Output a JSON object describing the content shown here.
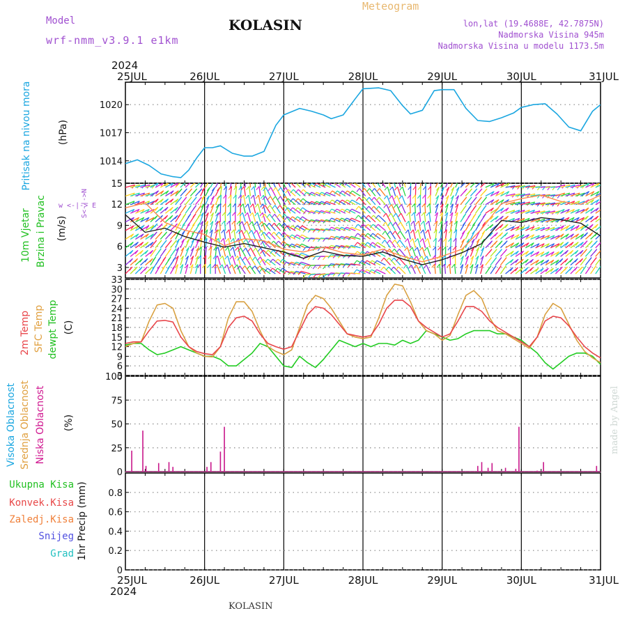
{
  "header": {
    "model_label": "Model",
    "model_name": "wrf-nmm_v3.9.1 e1km",
    "station": "KOLASIN",
    "meteogram": "Meteogram",
    "lonlat": "lon,lat (19.4688E, 42.7875N)",
    "elevation": "Nadmorska Visina 945m",
    "elevation_model": "Nadmorska Visina u modelu 1173.5m",
    "year": "2024",
    "credit": "made by Angel",
    "footer_station": "KOLASIN"
  },
  "colors": {
    "pressure": "#1aa6e0",
    "temp2m": "#e8454a",
    "sfc": "#d8a040",
    "dewpt": "#22cc22",
    "cloud_low": "#c8168a",
    "label_green": "#22c022",
    "label_red": "#e84848",
    "label_orange": "#f0803a",
    "label_blue": "#5050e0",
    "label_teal": "#22c0c0",
    "label_purple": "#a050d0",
    "label_cyan": "#1aa6e0",
    "label_magenta": "#d01890",
    "label_gold": "#e0a040"
  },
  "chart_data": [
    {
      "panel": "pressure",
      "type": "line",
      "xlabels": [
        "25JUL",
        "26JUL",
        "27JUL",
        "28JUL",
        "29JUL",
        "30JUL",
        "31JUL"
      ],
      "ylabel_title": "Pritisak na nivou mora",
      "ylabel_unit": "(hPa)",
      "yticks": [
        "1014",
        "1017",
        "1020"
      ],
      "ylim": [
        1011.6,
        1022.4
      ],
      "x_days": [
        0,
        0.15,
        0.3,
        0.45,
        0.6,
        0.7,
        0.8,
        0.9,
        1.0,
        1.1,
        1.2,
        1.35,
        1.5,
        1.6,
        1.75,
        1.9,
        2.0,
        2.2,
        2.35,
        2.5,
        2.6,
        2.75,
        2.9,
        3.0,
        3.2,
        3.35,
        3.5,
        3.6,
        3.75,
        3.9,
        4.0,
        4.15,
        4.3,
        4.45,
        4.6,
        4.75,
        4.9,
        5.0,
        5.15,
        5.3,
        5.45,
        5.6,
        5.75,
        5.9,
        6.0
      ],
      "values": [
        1013.7,
        1014.1,
        1013.5,
        1012.6,
        1012.3,
        1012.2,
        1013.0,
        1014.3,
        1015.4,
        1015.4,
        1015.6,
        1014.8,
        1014.5,
        1014.5,
        1015.0,
        1017.8,
        1018.9,
        1019.6,
        1019.3,
        1018.9,
        1018.5,
        1018.9,
        1020.6,
        1021.7,
        1021.8,
        1021.5,
        1019.9,
        1019.0,
        1019.4,
        1021.5,
        1021.6,
        1021.6,
        1019.6,
        1018.3,
        1018.2,
        1018.6,
        1019.1,
        1019.7,
        1020.0,
        1020.1,
        1019.0,
        1017.6,
        1017.2,
        1019.3,
        1020.0
      ]
    },
    {
      "panel": "wind",
      "type": "line",
      "ylabel_title1": "10m Vjetar",
      "ylabel_title2": "Brzina i Pravac",
      "ylabel_unit": "(m/s)",
      "compass": "w <-|-> E",
      "compass_v": "S<-|->N",
      "yticks": [
        "3",
        "6",
        "9",
        "12",
        "15"
      ],
      "ylim": [
        1.5,
        15
      ],
      "x_days": [
        0,
        0.25,
        0.5,
        0.75,
        1.0,
        1.25,
        1.5,
        1.75,
        2.0,
        2.25,
        2.5,
        2.75,
        3.0,
        3.25,
        3.5,
        3.75,
        4.0,
        4.25,
        4.5,
        4.75,
        5.0,
        5.25,
        5.5,
        5.75,
        6.0
      ],
      "speed": [
        10.5,
        8.0,
        8.6,
        7.4,
        6.6,
        5.9,
        6.4,
        5.8,
        5.2,
        4.3,
        5.3,
        4.7,
        4.6,
        5.2,
        4.2,
        3.4,
        4.1,
        5.1,
        6.4,
        9.7,
        9.4,
        10.1,
        9.8,
        9.3,
        7.5
      ],
      "gust": [
        11.5,
        12.2,
        9.4,
        8.3,
        7.7,
        6.1,
        7.1,
        6.8,
        5.6,
        5.2,
        5.9,
        5.1,
        4.8,
        5.6,
        4.6,
        3.8,
        4.6,
        5.6,
        8.5,
        12.1,
        12.8,
        13.3,
        12.4,
        12.0,
        13.3
      ]
    },
    {
      "panel": "temperature",
      "type": "line",
      "ylabel_2m": "2m Temp",
      "ylabel_sfc": "SFC Temp",
      "ylabel_dew": "dewpt Temp",
      "ylabel_unit": "(C)",
      "yticks": [
        "3",
        "6",
        "9",
        "12",
        "15",
        "18",
        "21",
        "24",
        "27",
        "30",
        "33"
      ],
      "ylim": [
        3,
        33
      ],
      "x_days": [
        0,
        0.1,
        0.2,
        0.3,
        0.4,
        0.5,
        0.6,
        0.7,
        0.8,
        0.9,
        1.0,
        1.1,
        1.2,
        1.3,
        1.4,
        1.5,
        1.6,
        1.7,
        1.8,
        1.9,
        2.0,
        2.1,
        2.2,
        2.3,
        2.4,
        2.5,
        2.6,
        2.7,
        2.8,
        2.9,
        3.0,
        3.1,
        3.2,
        3.3,
        3.4,
        3.5,
        3.6,
        3.7,
        3.8,
        3.9,
        4.0,
        4.1,
        4.2,
        4.3,
        4.4,
        4.5,
        4.6,
        4.7,
        4.8,
        4.9,
        5.0,
        5.1,
        5.2,
        5.3,
        5.4,
        5.5,
        5.6,
        5.7,
        5.8,
        5.9,
        6.0
      ],
      "temp2m": [
        13.0,
        13.5,
        13.5,
        17.0,
        20.0,
        20.2,
        19.7,
        15.0,
        12.0,
        10.5,
        9.8,
        9.5,
        12.0,
        18.0,
        21.0,
        21.5,
        20.0,
        16.0,
        13.0,
        12.0,
        11.2,
        12.0,
        17.0,
        22.0,
        24.5,
        24.0,
        22.0,
        19.0,
        16.0,
        15.5,
        15.0,
        15.5,
        19.0,
        24.0,
        26.5,
        26.5,
        24.5,
        20.0,
        18.0,
        16.5,
        15.0,
        16.0,
        20.0,
        24.5,
        24.5,
        23.0,
        20.0,
        18.0,
        16.5,
        15.0,
        13.5,
        12.0,
        15.0,
        20.0,
        21.5,
        21.0,
        18.5,
        15.0,
        12.0,
        10.0,
        8.5
      ],
      "sfc": [
        12.0,
        13.0,
        13.5,
        20.0,
        25.0,
        25.5,
        24.0,
        17.0,
        12.0,
        10.0,
        9.0,
        8.8,
        12.0,
        21.0,
        26.0,
        26.0,
        23.0,
        17.0,
        12.0,
        10.5,
        9.5,
        11.0,
        18.0,
        25.0,
        28.0,
        27.0,
        24.0,
        20.0,
        16.0,
        15.0,
        14.5,
        15.0,
        21.0,
        28.0,
        31.5,
        31.0,
        26.0,
        20.0,
        17.0,
        16.0,
        14.0,
        15.5,
        22.0,
        28.0,
        29.5,
        27.0,
        21.0,
        17.0,
        16.0,
        14.5,
        13.0,
        11.5,
        15.0,
        22.0,
        25.5,
        24.0,
        19.0,
        14.0,
        10.5,
        8.5,
        7.0
      ],
      "dewpt": [
        12.5,
        13.0,
        13.0,
        11.0,
        9.5,
        10.0,
        11.0,
        12.0,
        11.0,
        10.0,
        9.0,
        9.0,
        8.0,
        6.0,
        6.0,
        8.0,
        10.0,
        13.0,
        12.0,
        9.0,
        6.0,
        5.5,
        9.0,
        7.0,
        5.5,
        8.0,
        11.0,
        14.0,
        13.0,
        12.0,
        13.0,
        12.0,
        13.0,
        13.0,
        12.5,
        14.0,
        13.0,
        14.0,
        17.0,
        16.0,
        15.0,
        14.0,
        14.5,
        16.0,
        17.0,
        17.0,
        17.0,
        16.0,
        16.0,
        15.0,
        14.0,
        12.0,
        10.0,
        7.0,
        5.0,
        7.0,
        9.0,
        10.0,
        10.0,
        9.0,
        6.5
      ]
    },
    {
      "panel": "clouds",
      "type": "bar",
      "ylabel_high": "Visoka Oblacnost",
      "ylabel_mid": "Srednja Oblacnost",
      "ylabel_low": "Niska Oblacnost",
      "ylabel_unit": "(%)",
      "yticks": [
        "0",
        "25",
        "50",
        "75",
        "100"
      ],
      "ylim": [
        0,
        100
      ],
      "low_x_days": [
        0.08,
        0.22,
        0.26,
        0.42,
        0.55,
        0.6,
        1.03,
        1.08,
        1.2,
        1.25,
        4.45,
        4.5,
        4.58,
        4.63,
        4.8,
        4.93,
        4.97,
        5.28,
        5.2,
        5.95
      ],
      "low_values": [
        22,
        43,
        6,
        9,
        10,
        5,
        5,
        10,
        21,
        47,
        6,
        10,
        4,
        9,
        4,
        3,
        47,
        10,
        1,
        6
      ]
    },
    {
      "panel": "precip",
      "type": "bar",
      "ylabel": "1hr Precip (mm)",
      "legend": [
        "Ukupna Kisa",
        "Konvek.Kisa",
        "Zaledj.Kisa",
        "Snijeg",
        "Grad"
      ],
      "yticks": [
        "0",
        "0.2",
        "0.4",
        "0.6",
        "0.8"
      ],
      "ylim": [
        0,
        1.0
      ],
      "values": []
    }
  ]
}
